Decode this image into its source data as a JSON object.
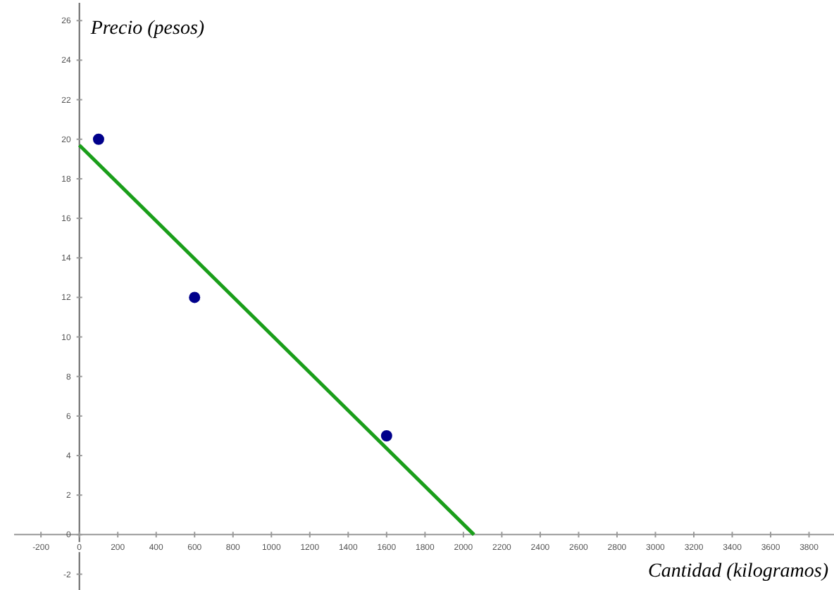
{
  "chart_data": {
    "type": "scatter",
    "xlabel": "Cantidad (kilogramos)",
    "ylabel": "Precio (pesos)",
    "xlim": [
      -340,
      3930
    ],
    "ylim": [
      -2.8,
      26.9
    ],
    "xticks": [
      -200,
      0,
      200,
      400,
      600,
      800,
      1000,
      1200,
      1400,
      1600,
      1800,
      2000,
      2200,
      2400,
      2600,
      2800,
      3000,
      3200,
      3400,
      3600,
      3800
    ],
    "yticks": [
      -2,
      0,
      2,
      4,
      6,
      8,
      10,
      12,
      14,
      16,
      18,
      20,
      22,
      24,
      26
    ],
    "grid": false,
    "series": [
      {
        "marker": "circle",
        "color": "#00008b",
        "x": [
          100,
          600,
          1600
        ],
        "values": [
          20,
          12,
          5
        ]
      },
      {
        "type": "line",
        "color": "#1a9e1a",
        "x": [
          0,
          2055
        ],
        "values": [
          19.7,
          0
        ]
      }
    ]
  }
}
